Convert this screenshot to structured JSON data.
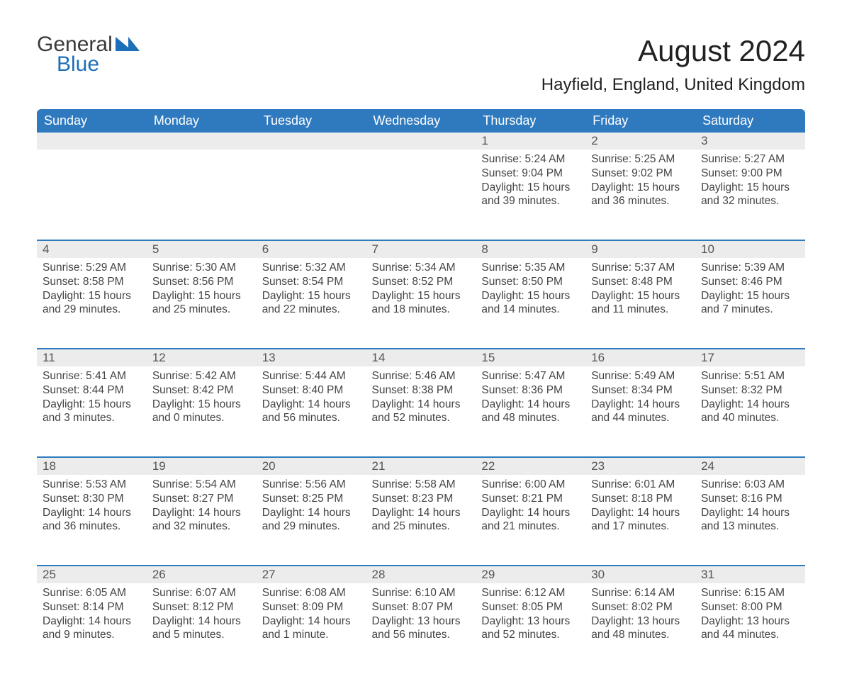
{
  "brand": {
    "word1": "General",
    "word2": "Blue",
    "accent_color": "#1d6fb8"
  },
  "title": "August 2024",
  "location": "Hayfield, England, United Kingdom",
  "header_bg": "#2f7abf",
  "daynum_bg": "#ececec",
  "weekday_labels": [
    "Sunday",
    "Monday",
    "Tuesday",
    "Wednesday",
    "Thursday",
    "Friday",
    "Saturday"
  ],
  "weeks": [
    [
      null,
      null,
      null,
      null,
      {
        "n": "1",
        "sunrise": "Sunrise: 5:24 AM",
        "sunset": "Sunset: 9:04 PM",
        "day1": "Daylight: 15 hours",
        "day2": "and 39 minutes."
      },
      {
        "n": "2",
        "sunrise": "Sunrise: 5:25 AM",
        "sunset": "Sunset: 9:02 PM",
        "day1": "Daylight: 15 hours",
        "day2": "and 36 minutes."
      },
      {
        "n": "3",
        "sunrise": "Sunrise: 5:27 AM",
        "sunset": "Sunset: 9:00 PM",
        "day1": "Daylight: 15 hours",
        "day2": "and 32 minutes."
      }
    ],
    [
      {
        "n": "4",
        "sunrise": "Sunrise: 5:29 AM",
        "sunset": "Sunset: 8:58 PM",
        "day1": "Daylight: 15 hours",
        "day2": "and 29 minutes."
      },
      {
        "n": "5",
        "sunrise": "Sunrise: 5:30 AM",
        "sunset": "Sunset: 8:56 PM",
        "day1": "Daylight: 15 hours",
        "day2": "and 25 minutes."
      },
      {
        "n": "6",
        "sunrise": "Sunrise: 5:32 AM",
        "sunset": "Sunset: 8:54 PM",
        "day1": "Daylight: 15 hours",
        "day2": "and 22 minutes."
      },
      {
        "n": "7",
        "sunrise": "Sunrise: 5:34 AM",
        "sunset": "Sunset: 8:52 PM",
        "day1": "Daylight: 15 hours",
        "day2": "and 18 minutes."
      },
      {
        "n": "8",
        "sunrise": "Sunrise: 5:35 AM",
        "sunset": "Sunset: 8:50 PM",
        "day1": "Daylight: 15 hours",
        "day2": "and 14 minutes."
      },
      {
        "n": "9",
        "sunrise": "Sunrise: 5:37 AM",
        "sunset": "Sunset: 8:48 PM",
        "day1": "Daylight: 15 hours",
        "day2": "and 11 minutes."
      },
      {
        "n": "10",
        "sunrise": "Sunrise: 5:39 AM",
        "sunset": "Sunset: 8:46 PM",
        "day1": "Daylight: 15 hours",
        "day2": "and 7 minutes."
      }
    ],
    [
      {
        "n": "11",
        "sunrise": "Sunrise: 5:41 AM",
        "sunset": "Sunset: 8:44 PM",
        "day1": "Daylight: 15 hours",
        "day2": "and 3 minutes."
      },
      {
        "n": "12",
        "sunrise": "Sunrise: 5:42 AM",
        "sunset": "Sunset: 8:42 PM",
        "day1": "Daylight: 15 hours",
        "day2": "and 0 minutes."
      },
      {
        "n": "13",
        "sunrise": "Sunrise: 5:44 AM",
        "sunset": "Sunset: 8:40 PM",
        "day1": "Daylight: 14 hours",
        "day2": "and 56 minutes."
      },
      {
        "n": "14",
        "sunrise": "Sunrise: 5:46 AM",
        "sunset": "Sunset: 8:38 PM",
        "day1": "Daylight: 14 hours",
        "day2": "and 52 minutes."
      },
      {
        "n": "15",
        "sunrise": "Sunrise: 5:47 AM",
        "sunset": "Sunset: 8:36 PM",
        "day1": "Daylight: 14 hours",
        "day2": "and 48 minutes."
      },
      {
        "n": "16",
        "sunrise": "Sunrise: 5:49 AM",
        "sunset": "Sunset: 8:34 PM",
        "day1": "Daylight: 14 hours",
        "day2": "and 44 minutes."
      },
      {
        "n": "17",
        "sunrise": "Sunrise: 5:51 AM",
        "sunset": "Sunset: 8:32 PM",
        "day1": "Daylight: 14 hours",
        "day2": "and 40 minutes."
      }
    ],
    [
      {
        "n": "18",
        "sunrise": "Sunrise: 5:53 AM",
        "sunset": "Sunset: 8:30 PM",
        "day1": "Daylight: 14 hours",
        "day2": "and 36 minutes."
      },
      {
        "n": "19",
        "sunrise": "Sunrise: 5:54 AM",
        "sunset": "Sunset: 8:27 PM",
        "day1": "Daylight: 14 hours",
        "day2": "and 32 minutes."
      },
      {
        "n": "20",
        "sunrise": "Sunrise: 5:56 AM",
        "sunset": "Sunset: 8:25 PM",
        "day1": "Daylight: 14 hours",
        "day2": "and 29 minutes."
      },
      {
        "n": "21",
        "sunrise": "Sunrise: 5:58 AM",
        "sunset": "Sunset: 8:23 PM",
        "day1": "Daylight: 14 hours",
        "day2": "and 25 minutes."
      },
      {
        "n": "22",
        "sunrise": "Sunrise: 6:00 AM",
        "sunset": "Sunset: 8:21 PM",
        "day1": "Daylight: 14 hours",
        "day2": "and 21 minutes."
      },
      {
        "n": "23",
        "sunrise": "Sunrise: 6:01 AM",
        "sunset": "Sunset: 8:18 PM",
        "day1": "Daylight: 14 hours",
        "day2": "and 17 minutes."
      },
      {
        "n": "24",
        "sunrise": "Sunrise: 6:03 AM",
        "sunset": "Sunset: 8:16 PM",
        "day1": "Daylight: 14 hours",
        "day2": "and 13 minutes."
      }
    ],
    [
      {
        "n": "25",
        "sunrise": "Sunrise: 6:05 AM",
        "sunset": "Sunset: 8:14 PM",
        "day1": "Daylight: 14 hours",
        "day2": "and 9 minutes."
      },
      {
        "n": "26",
        "sunrise": "Sunrise: 6:07 AM",
        "sunset": "Sunset: 8:12 PM",
        "day1": "Daylight: 14 hours",
        "day2": "and 5 minutes."
      },
      {
        "n": "27",
        "sunrise": "Sunrise: 6:08 AM",
        "sunset": "Sunset: 8:09 PM",
        "day1": "Daylight: 14 hours",
        "day2": "and 1 minute."
      },
      {
        "n": "28",
        "sunrise": "Sunrise: 6:10 AM",
        "sunset": "Sunset: 8:07 PM",
        "day1": "Daylight: 13 hours",
        "day2": "and 56 minutes."
      },
      {
        "n": "29",
        "sunrise": "Sunrise: 6:12 AM",
        "sunset": "Sunset: 8:05 PM",
        "day1": "Daylight: 13 hours",
        "day2": "and 52 minutes."
      },
      {
        "n": "30",
        "sunrise": "Sunrise: 6:14 AM",
        "sunset": "Sunset: 8:02 PM",
        "day1": "Daylight: 13 hours",
        "day2": "and 48 minutes."
      },
      {
        "n": "31",
        "sunrise": "Sunrise: 6:15 AM",
        "sunset": "Sunset: 8:00 PM",
        "day1": "Daylight: 13 hours",
        "day2": "and 44 minutes."
      }
    ]
  ]
}
